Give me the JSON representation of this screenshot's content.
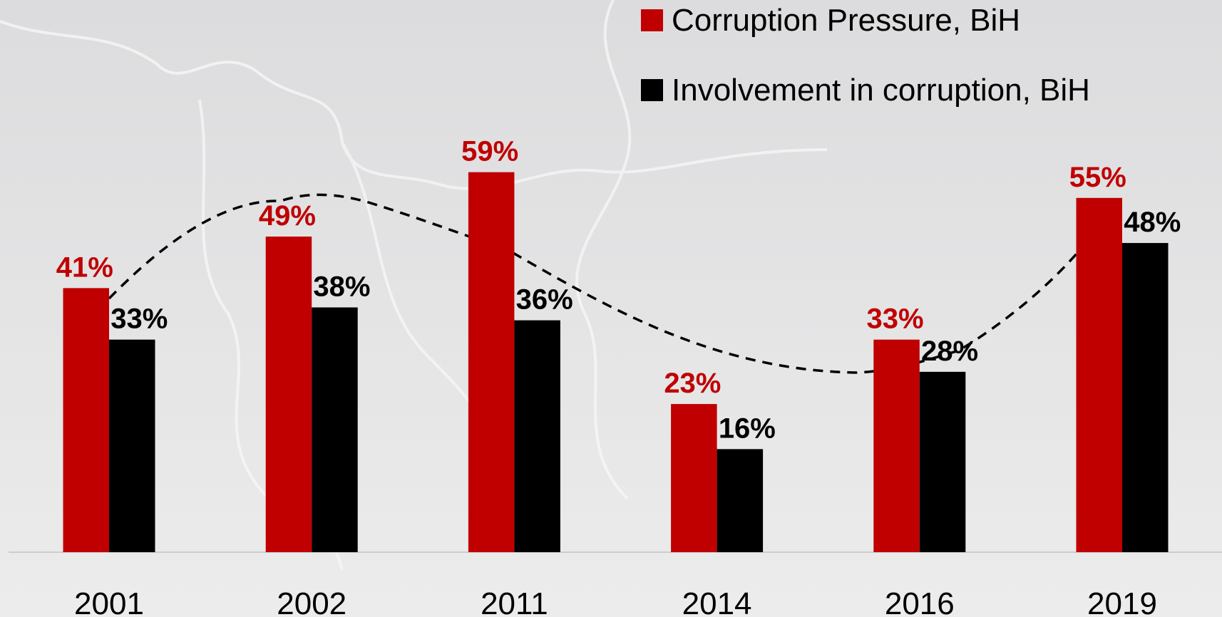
{
  "chart_data": {
    "type": "bar",
    "categories": [
      "2001",
      "2002",
      "2011",
      "2014",
      "2016",
      "2019"
    ],
    "series": [
      {
        "name": "Corruption Pressure, BiH",
        "color": "#c00000",
        "values": [
          41,
          49,
          59,
          23,
          33,
          55
        ],
        "value_labels": [
          "41%",
          "49%",
          "59%",
          "23%",
          "33%",
          "55%"
        ]
      },
      {
        "name": "Involvement in corruption, BiH",
        "color": "#000000",
        "values": [
          33,
          38,
          36,
          16,
          28,
          48
        ],
        "value_labels": [
          "33%",
          "38%",
          "36%",
          "16%",
          "28%",
          "48%"
        ]
      }
    ]
  }
}
